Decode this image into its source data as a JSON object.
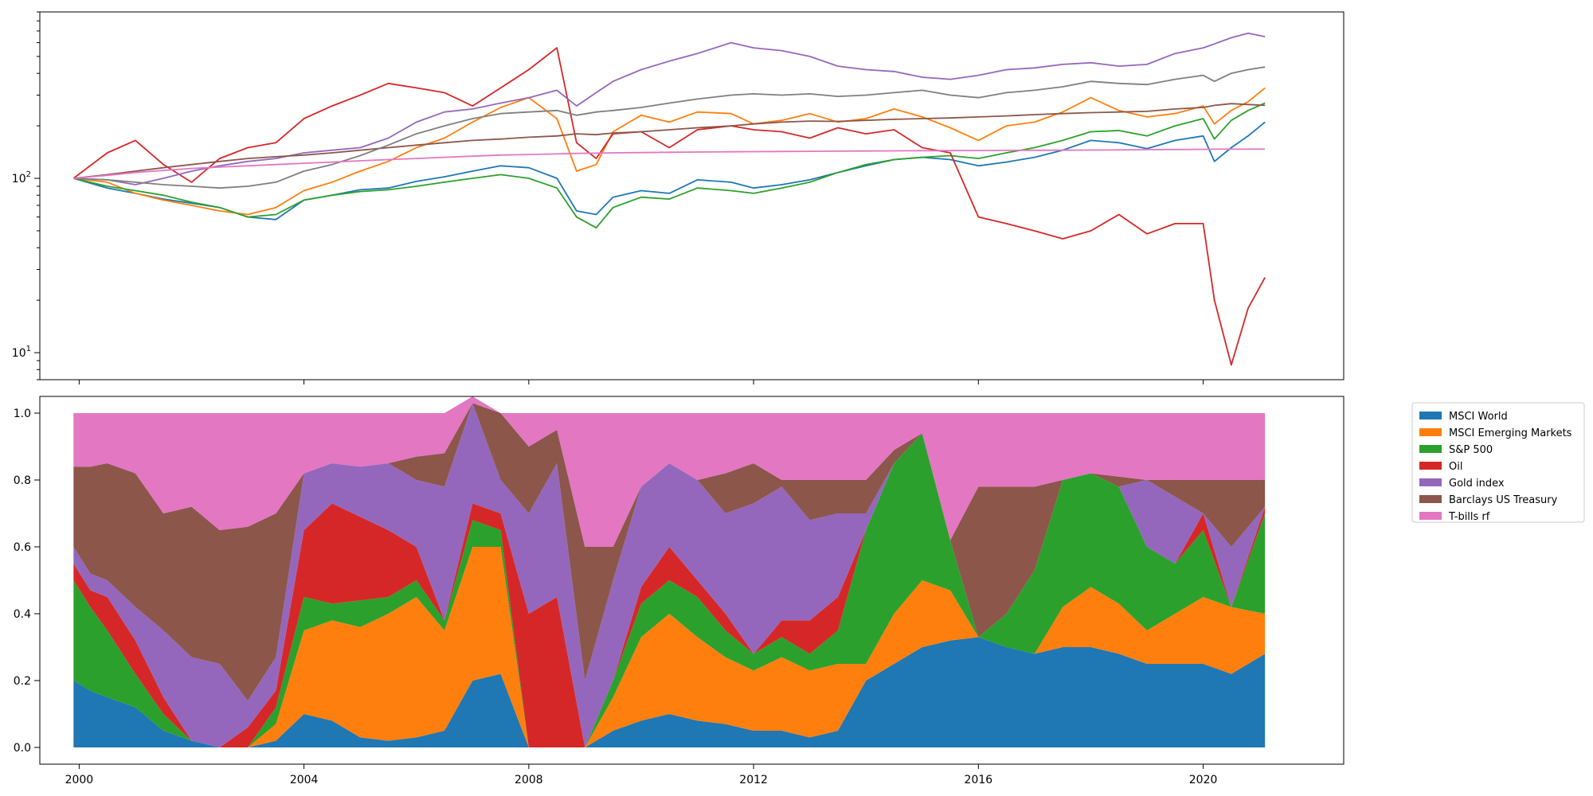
{
  "chart_data": [
    {
      "type": "line",
      "yscale": "log",
      "xlim": [
        1999.3,
        2022.5
      ],
      "ylim": [
        7,
        900
      ],
      "grid": false,
      "xtick_labels_visible": false,
      "x": [
        1999.9,
        2000.5,
        2001.0,
        2001.5,
        2002.0,
        2002.5,
        2003.0,
        2003.5,
        2004.0,
        2004.5,
        2005.0,
        2005.5,
        2006.0,
        2006.5,
        2007.0,
        2007.5,
        2008.0,
        2008.5,
        2008.85,
        2009.2,
        2009.5,
        2010.0,
        2010.5,
        2011.0,
        2011.6,
        2012.0,
        2012.5,
        2013.0,
        2013.5,
        2014.0,
        2014.5,
        2015.0,
        2015.5,
        2016.0,
        2016.5,
        2017.0,
        2017.5,
        2018.0,
        2018.5,
        2019.0,
        2019.5,
        2020.0,
        2020.2,
        2020.5,
        2020.8,
        2021.1
      ],
      "yticks": [
        {
          "value": 10,
          "base": "10",
          "exp": "1"
        },
        {
          "value": 100,
          "base": "10",
          "exp": "2"
        }
      ],
      "series": [
        {
          "color": "#1f77b4",
          "values": [
            100,
            88,
            82,
            76,
            72,
            68,
            60,
            58,
            75,
            80,
            86,
            88,
            96,
            102,
            110,
            118,
            115,
            100,
            65,
            62,
            78,
            85,
            82,
            98,
            95,
            88,
            92,
            98,
            108,
            118,
            128,
            132,
            128,
            118,
            124,
            132,
            145,
            165,
            160,
            148,
            165,
            175,
            125,
            150,
            175,
            210
          ]
        },
        {
          "color": "#ff7f0e",
          "values": [
            100,
            95,
            82,
            75,
            70,
            65,
            62,
            68,
            85,
            95,
            110,
            125,
            150,
            170,
            210,
            255,
            290,
            220,
            110,
            120,
            185,
            230,
            210,
            240,
            235,
            205,
            215,
            235,
            210,
            220,
            250,
            225,
            195,
            165,
            200,
            210,
            240,
            290,
            245,
            225,
            235,
            260,
            205,
            245,
            275,
            330
          ]
        },
        {
          "color": "#2ca02c",
          "values": [
            100,
            90,
            85,
            80,
            73,
            68,
            60,
            62,
            75,
            80,
            84,
            86,
            90,
            95,
            100,
            105,
            100,
            88,
            60,
            52,
            68,
            78,
            76,
            88,
            85,
            82,
            88,
            95,
            108,
            120,
            128,
            132,
            135,
            130,
            140,
            150,
            165,
            185,
            188,
            175,
            200,
            220,
            168,
            215,
            245,
            270
          ]
        },
        {
          "color": "#d62728",
          "values": [
            100,
            140,
            165,
            120,
            95,
            130,
            150,
            160,
            220,
            260,
            300,
            350,
            330,
            310,
            260,
            330,
            420,
            560,
            160,
            130,
            180,
            185,
            150,
            190,
            200,
            190,
            185,
            170,
            195,
            180,
            190,
            150,
            140,
            60,
            55,
            50,
            45,
            50,
            62,
            48,
            55,
            55,
            20,
            8.5,
            18,
            27
          ]
        },
        {
          "color": "#9467bd",
          "values": [
            100,
            98,
            92,
            100,
            110,
            118,
            125,
            130,
            140,
            145,
            150,
            170,
            210,
            240,
            250,
            270,
            290,
            320,
            260,
            310,
            360,
            420,
            470,
            520,
            600,
            560,
            540,
            500,
            440,
            420,
            410,
            380,
            370,
            390,
            420,
            430,
            450,
            460,
            440,
            450,
            520,
            560,
            590,
            640,
            680,
            650
          ]
        },
        {
          "color": "#8c564b",
          "values": [
            100,
            105,
            110,
            115,
            120,
            125,
            130,
            133,
            136,
            140,
            145,
            150,
            155,
            160,
            165,
            168,
            172,
            175,
            180,
            178,
            182,
            185,
            190,
            195,
            200,
            205,
            210,
            213,
            212,
            215,
            218,
            220,
            222,
            225,
            228,
            232,
            235,
            238,
            240,
            242,
            250,
            255,
            262,
            268,
            265,
            262
          ]
        },
        {
          "color": "#7f7f7f",
          "values": [
            100,
            98,
            95,
            92,
            90,
            88,
            90,
            95,
            110,
            120,
            135,
            155,
            180,
            200,
            220,
            235,
            240,
            245,
            230,
            240,
            245,
            255,
            270,
            285,
            300,
            305,
            300,
            305,
            295,
            300,
            310,
            320,
            300,
            290,
            310,
            320,
            335,
            360,
            350,
            345,
            370,
            390,
            360,
            400,
            420,
            435
          ]
        },
        {
          "color": "#e377c2",
          "values": [
            100,
            104,
            108,
            111,
            114,
            116,
            118,
            120,
            122,
            124,
            126,
            128,
            130,
            132,
            134,
            136,
            137,
            138,
            139,
            139.5,
            140,
            140.5,
            141,
            141.5,
            142,
            142.3,
            142.6,
            142.9,
            143.2,
            143.5,
            143.8,
            144,
            144.2,
            144.4,
            144.6,
            144.8,
            145,
            145.3,
            145.6,
            146,
            146.4,
            146.7,
            146.9,
            147,
            147,
            147
          ]
        }
      ]
    },
    {
      "type": "area",
      "stacked": true,
      "xlim": [
        1999.3,
        2022.5
      ],
      "ylim": [
        -0.05,
        1.05
      ],
      "grid": false,
      "legend_position": "outside-right",
      "x": [
        1999.9,
        2000.2,
        2000.5,
        2001.0,
        2001.5,
        2002.0,
        2002.5,
        2003.0,
        2003.5,
        2004.0,
        2004.5,
        2005.0,
        2005.5,
        2006.0,
        2006.5,
        2007.0,
        2007.5,
        2008.0,
        2008.5,
        2009.0,
        2009.5,
        2010.0,
        2010.5,
        2011.0,
        2011.5,
        2012.0,
        2012.5,
        2013.0,
        2013.5,
        2014.0,
        2014.5,
        2015.0,
        2015.5,
        2016.0,
        2016.5,
        2017.0,
        2017.5,
        2018.0,
        2018.5,
        2019.0,
        2019.5,
        2020.0,
        2020.5,
        2021.1
      ],
      "xticks": [
        2000,
        2004,
        2008,
        2012,
        2016,
        2020
      ],
      "xtick_labels": [
        "2000",
        "2004",
        "2008",
        "2012",
        "2016",
        "2020"
      ],
      "yticks": [
        0.0,
        0.2,
        0.4,
        0.6,
        0.8,
        1.0
      ],
      "ytick_labels": [
        "0.0",
        "0.2",
        "0.4",
        "0.6",
        "0.8",
        "1.0"
      ],
      "series": [
        {
          "name": "MSCI World",
          "color": "#1f77b4",
          "values": [
            0.2,
            0.17,
            0.15,
            0.12,
            0.05,
            0.02,
            0.0,
            0.0,
            0.02,
            0.1,
            0.08,
            0.03,
            0.02,
            0.03,
            0.05,
            0.2,
            0.22,
            0.0,
            0.0,
            0.0,
            0.05,
            0.08,
            0.1,
            0.08,
            0.07,
            0.05,
            0.05,
            0.03,
            0.05,
            0.2,
            0.25,
            0.3,
            0.32,
            0.33,
            0.3,
            0.28,
            0.3,
            0.3,
            0.28,
            0.25,
            0.25,
            0.25,
            0.22,
            0.28
          ]
        },
        {
          "name": "MSCI Emerging Markets",
          "color": "#ff7f0e",
          "values": [
            0.0,
            0.0,
            0.0,
            0.0,
            0.0,
            0.0,
            0.0,
            0.0,
            0.05,
            0.25,
            0.3,
            0.33,
            0.38,
            0.42,
            0.3,
            0.4,
            0.38,
            0.0,
            0.0,
            0.0,
            0.1,
            0.25,
            0.3,
            0.25,
            0.2,
            0.18,
            0.22,
            0.2,
            0.2,
            0.05,
            0.15,
            0.2,
            0.15,
            0.0,
            0.0,
            0.0,
            0.12,
            0.18,
            0.15,
            0.1,
            0.15,
            0.2,
            0.2,
            0.12
          ]
        },
        {
          "name": "S&P 500",
          "color": "#2ca02c",
          "values": [
            0.3,
            0.25,
            0.2,
            0.1,
            0.05,
            0.0,
            0.0,
            0.0,
            0.05,
            0.1,
            0.05,
            0.08,
            0.05,
            0.05,
            0.03,
            0.08,
            0.05,
            0.0,
            0.0,
            0.0,
            0.05,
            0.1,
            0.1,
            0.12,
            0.08,
            0.05,
            0.06,
            0.05,
            0.1,
            0.4,
            0.45,
            0.44,
            0.15,
            0.0,
            0.1,
            0.25,
            0.38,
            0.34,
            0.35,
            0.25,
            0.15,
            0.2,
            0.0,
            0.3
          ]
        },
        {
          "name": "Oil",
          "color": "#d62728",
          "values": [
            0.05,
            0.05,
            0.1,
            0.1,
            0.05,
            0.0,
            0.0,
            0.06,
            0.05,
            0.2,
            0.3,
            0.25,
            0.2,
            0.1,
            0.0,
            0.05,
            0.05,
            0.4,
            0.45,
            0.0,
            0.0,
            0.05,
            0.1,
            0.05,
            0.05,
            0.0,
            0.05,
            0.1,
            0.1,
            0.0,
            0.0,
            0.0,
            0.0,
            0.0,
            0.0,
            0.0,
            0.0,
            0.0,
            0.0,
            0.0,
            0.0,
            0.05,
            0.0,
            0.02
          ]
        },
        {
          "name": "Gold index",
          "color": "#9467bd",
          "values": [
            0.05,
            0.05,
            0.05,
            0.1,
            0.2,
            0.25,
            0.25,
            0.08,
            0.1,
            0.17,
            0.12,
            0.15,
            0.2,
            0.2,
            0.4,
            0.3,
            0.1,
            0.3,
            0.4,
            0.2,
            0.3,
            0.3,
            0.25,
            0.3,
            0.3,
            0.45,
            0.4,
            0.3,
            0.25,
            0.05,
            0.0,
            0.0,
            0.0,
            0.0,
            0.0,
            0.0,
            0.0,
            0.0,
            0.0,
            0.2,
            0.2,
            0.0,
            0.18,
            0.0
          ]
        },
        {
          "name": "Barclays US Treasury",
          "color": "#8c564b",
          "values": [
            0.24,
            0.32,
            0.35,
            0.4,
            0.35,
            0.45,
            0.4,
            0.52,
            0.43,
            0.0,
            0.0,
            0.0,
            0.0,
            0.07,
            0.1,
            0.0,
            0.2,
            0.2,
            0.1,
            0.4,
            0.1,
            0.0,
            0.0,
            0.0,
            0.12,
            0.12,
            0.02,
            0.12,
            0.1,
            0.1,
            0.04,
            0.0,
            0.0,
            0.45,
            0.38,
            0.25,
            0.0,
            0.0,
            0.03,
            0.0,
            0.05,
            0.1,
            0.2,
            0.08
          ]
        },
        {
          "name": "T-bills rf",
          "color": "#e377c2",
          "values": [
            0.16,
            0.16,
            0.15,
            0.18,
            0.3,
            0.28,
            0.35,
            0.34,
            0.3,
            0.18,
            0.15,
            0.16,
            0.15,
            0.13,
            0.12,
            0.02,
            0.0,
            0.1,
            0.05,
            0.4,
            0.4,
            0.22,
            0.15,
            0.2,
            0.18,
            0.15,
            0.2,
            0.2,
            0.2,
            0.2,
            0.11,
            0.06,
            0.38,
            0.22,
            0.22,
            0.22,
            0.2,
            0.18,
            0.19,
            0.2,
            0.2,
            0.2,
            0.2,
            0.2
          ]
        }
      ]
    }
  ]
}
